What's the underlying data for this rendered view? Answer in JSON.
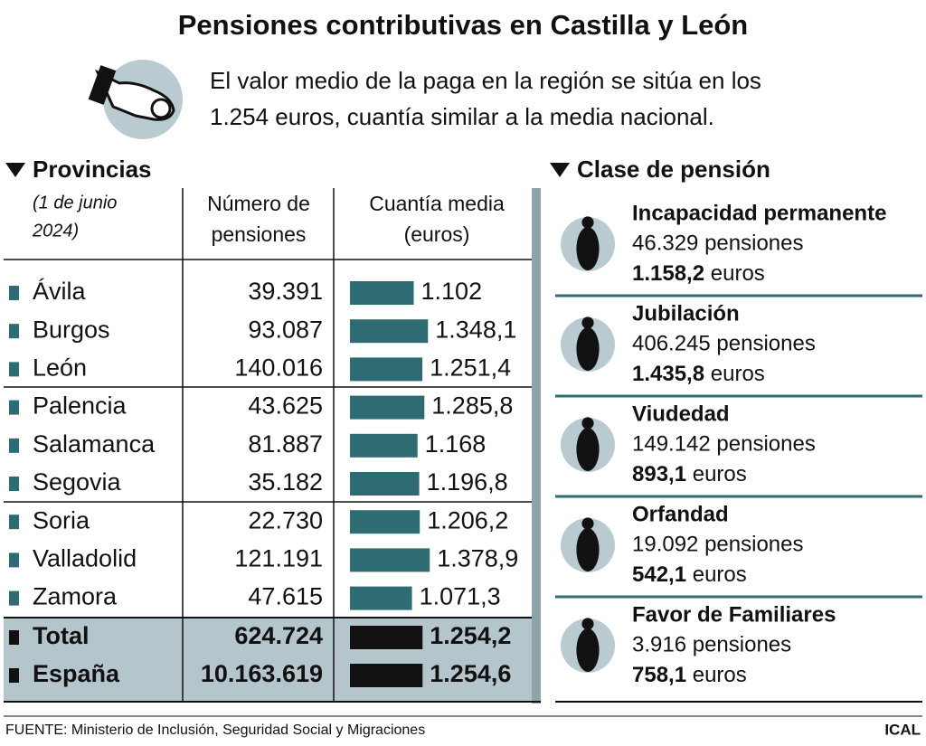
{
  "header": {
    "title": "Pensiones contributivas en Castilla y León",
    "subtitle": [
      "El valor medio de la paga en la región se sitúa en los",
      "1.254 euros, cuantía similar a la media nacional."
    ]
  },
  "provincias": {
    "heading": "Provincias",
    "date": [
      "(1 de junio",
      "2024)"
    ],
    "col_count": [
      "Número de",
      "pensiones"
    ],
    "col_amount": [
      "Cuantía media",
      "(euros)"
    ],
    "rows": [
      {
        "name": "Ávila",
        "count": "39.391",
        "value": 1102,
        "value_label": "1.102"
      },
      {
        "name": "Burgos",
        "count": "93.087",
        "value": 1348.1,
        "value_label": "1.348,1"
      },
      {
        "name": "León",
        "count": "140.016",
        "value": 1251.4,
        "value_label": "1.251,4"
      },
      {
        "name": "Palencia",
        "count": "43.625",
        "value": 1285.8,
        "value_label": "1.285,8"
      },
      {
        "name": "Salamanca",
        "count": "81.887",
        "value": 1168,
        "value_label": "1.168"
      },
      {
        "name": "Segovia",
        "count": "35.182",
        "value": 1196.8,
        "value_label": "1.196,8"
      },
      {
        "name": "Soria",
        "count": "22.730",
        "value": 1206.2,
        "value_label": "1.206,2"
      },
      {
        "name": "Valladolid",
        "count": "121.191",
        "value": 1378.9,
        "value_label": "1.378,9"
      },
      {
        "name": "Zamora",
        "count": "47.615",
        "value": 1071.3,
        "value_label": "1.071,3"
      }
    ],
    "totals": [
      {
        "name": "Total",
        "count": "624.724",
        "value": 1254.2,
        "value_label": "1.254,2"
      },
      {
        "name": "España",
        "count": "10.163.619",
        "value": 1254.6,
        "value_label": "1.254,6"
      }
    ]
  },
  "clases": {
    "heading": "Clase de pensión",
    "items": [
      {
        "name": "Incapacidad permanente",
        "count": "46.329 pensiones",
        "amount": "1.158,2",
        "unit": "euros"
      },
      {
        "name": "Jubilación",
        "count": "406.245 pensiones",
        "amount": "1.435,8",
        "unit": "euros"
      },
      {
        "name": "Viudedad",
        "count": "149.142 pensiones",
        "amount": "893,1",
        "unit": "euros"
      },
      {
        "name": "Orfandad",
        "count": "19.092 pensiones",
        "amount": "542,1",
        "unit": "euros"
      },
      {
        "name": "Favor de Familiares",
        "count": "3.916 pensiones",
        "amount": "758,1",
        "unit": "euros"
      }
    ]
  },
  "footer": {
    "source": "FUENTE: Ministerio de Inclusión, Seguridad Social y Migraciones",
    "credit": "ICAL"
  }
}
